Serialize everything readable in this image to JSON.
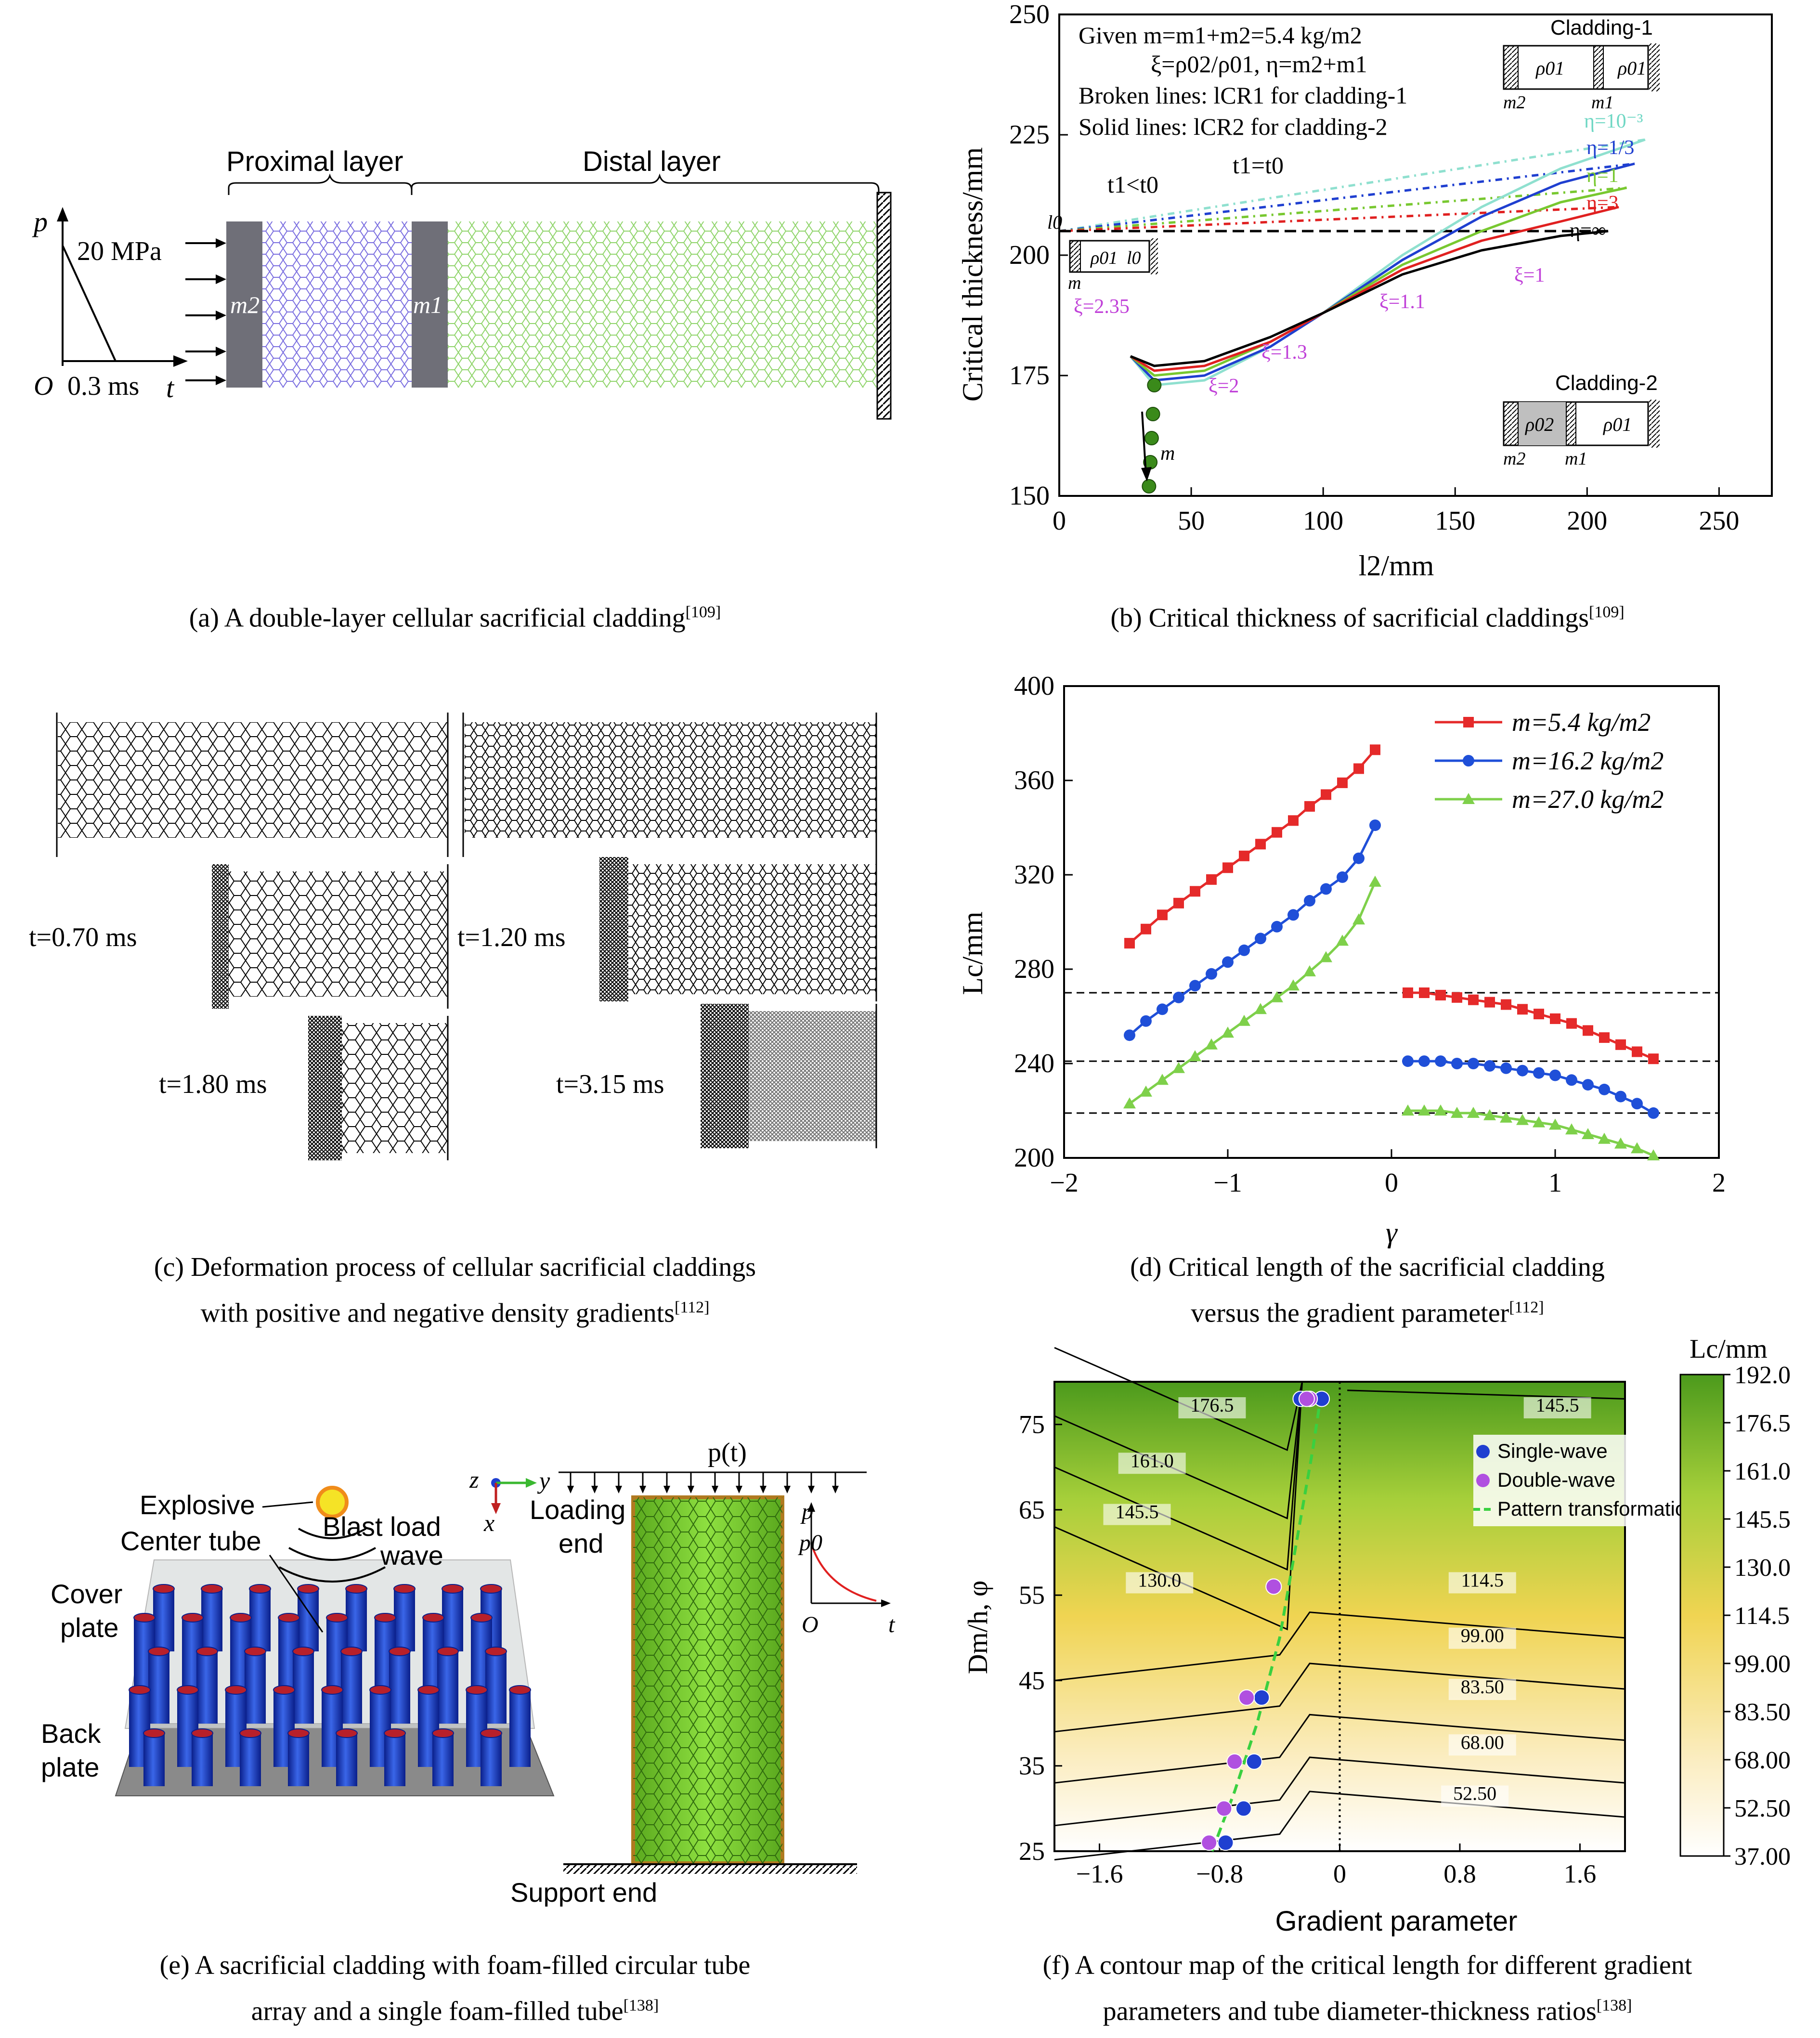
{
  "panel_a": {
    "pulse_axis_p": "p",
    "pulse_axis_t": "t",
    "pulse_origin": "O",
    "pulse_peak": "20 MPa",
    "pulse_duration": "0.3 ms",
    "proximal_label": "Proximal layer",
    "distal_label": "Distal layer",
    "mass_2": "m2",
    "mass_1": "m1",
    "caption": "(a) A double-layer cellular sacrificial cladding",
    "ref": "[109]",
    "colors": {
      "proximal": "#7a6ee0",
      "distal": "#8fd46a",
      "mass": "#6f6f78"
    }
  },
  "panel_b": {
    "chart_data": {
      "type": "line",
      "xlabel": "l2/mm",
      "ylabel": "Critical thickness/mm",
      "xlim": [
        0,
        270
      ],
      "ylim": [
        150,
        250
      ],
      "xticks": [
        0,
        50,
        100,
        150,
        200,
        250
      ],
      "yticks": [
        150,
        175,
        200,
        225,
        250
      ],
      "annotations": [
        "Given m=m1+m2=5.4 kg/m2",
        "ξ=ρ02/ρ01, η=m2+m1",
        "Broken lines: lCR1 for cladding-1",
        "Solid lines: lCR2 for cladding-2",
        "t1<t0",
        "t1=t0",
        "l0"
      ],
      "series_labels": [
        "η=10⁻³",
        "η=1/3",
        "η=1",
        "η=3",
        "η=∞"
      ],
      "xi_labels": [
        "ξ=2.35",
        "ξ=2",
        "ξ=1.3",
        "ξ=1.1",
        "ξ=1"
      ],
      "inset_labels": [
        "Cladding-1",
        "Cladding-2",
        "ρ01",
        "ρ02",
        "m2",
        "m1",
        "m",
        "l0"
      ],
      "dash_lines": [
        {
          "color": "#8fe0cf",
          "x": [
            0,
            222
          ],
          "y": [
            205,
            224
          ]
        },
        {
          "color": "#1f3fd0",
          "x": [
            0,
            218
          ],
          "y": [
            205,
            219
          ]
        },
        {
          "color": "#78c830",
          "x": [
            0,
            215
          ],
          "y": [
            205,
            214
          ]
        },
        {
          "color": "#e02020",
          "x": [
            0,
            212
          ],
          "y": [
            205,
            210
          ]
        },
        {
          "color": "#000000",
          "x": [
            0,
            208
          ],
          "y": [
            205,
            205
          ]
        }
      ],
      "solid_lines": [
        {
          "color": "#8fe0cf",
          "x": [
            27,
            36,
            55,
            80,
            100,
            130,
            160,
            190,
            222
          ],
          "y": [
            179,
            173,
            174,
            181,
            188,
            200,
            210,
            218,
            224
          ]
        },
        {
          "color": "#1f3fd0",
          "x": [
            27,
            36,
            55,
            80,
            100,
            130,
            160,
            190,
            218
          ],
          "y": [
            179,
            174,
            175,
            181,
            188,
            199,
            208,
            215,
            219
          ]
        },
        {
          "color": "#78c830",
          "x": [
            27,
            36,
            55,
            80,
            100,
            130,
            160,
            190,
            215
          ],
          "y": [
            179,
            175,
            176,
            182,
            188,
            198,
            205,
            211,
            214
          ]
        },
        {
          "color": "#e02020",
          "x": [
            27,
            36,
            55,
            80,
            100,
            130,
            160,
            190,
            212
          ],
          "y": [
            179,
            176,
            177,
            182,
            188,
            197,
            203,
            207,
            210
          ]
        },
        {
          "color": "#000000",
          "x": [
            27,
            36,
            55,
            80,
            100,
            130,
            160,
            190,
            208
          ],
          "y": [
            179,
            177,
            178,
            183,
            188,
            196,
            201,
            204,
            205
          ]
        }
      ],
      "minimum_points": {
        "x": [
          36,
          35.5,
          35,
          34.5,
          34
        ],
        "y": [
          173,
          167,
          162,
          157,
          152
        ]
      },
      "arrow_label": "m",
      "colors": {
        "xi_labels": "#c040d8",
        "points": "#3a8a1a"
      }
    },
    "caption": "(b) Critical thickness of sacrificial claddings",
    "ref": "[109]"
  },
  "panel_c": {
    "times": [
      "t=0.70 ms",
      "t=1.20 ms",
      "t=1.80 ms",
      "t=3.15 ms"
    ],
    "caption_line1": "(c) Deformation process of cellular sacrificial claddings",
    "caption_line2": "with positive and negative density gradients",
    "ref": "[112]"
  },
  "panel_d": {
    "chart_data": {
      "type": "line",
      "xlabel": "γ",
      "ylabel": "Lc/mm",
      "xlim": [
        -2,
        2
      ],
      "ylim": [
        200,
        400
      ],
      "xticks": [
        -2,
        -1,
        0,
        1,
        2
      ],
      "yticks": [
        200,
        240,
        280,
        320,
        360,
        400
      ],
      "reference_lines": [
        270,
        241,
        219
      ],
      "series": [
        {
          "name": "m=5.4 kg/m2",
          "color": "#e52a2a",
          "marker": "square",
          "left": {
            "x": [
              -1.6,
              -1.5,
              -1.4,
              -1.3,
              -1.2,
              -1.1,
              -1.0,
              -0.9,
              -0.8,
              -0.7,
              -0.6,
              -0.5,
              -0.4,
              -0.3,
              -0.2,
              -0.1
            ],
            "y": [
              291,
              297,
              303,
              308,
              313,
              318,
              323,
              328,
              333,
              338,
              343,
              349,
              354,
              359,
              365,
              373
            ]
          },
          "right": {
            "x": [
              0.1,
              0.2,
              0.3,
              0.4,
              0.5,
              0.6,
              0.7,
              0.8,
              0.9,
              1.0,
              1.1,
              1.2,
              1.3,
              1.4,
              1.5,
              1.6
            ],
            "y": [
              270,
              270,
              269,
              268,
              267,
              266,
              265,
              263,
              261,
              259,
              257,
              254,
              251,
              248,
              245,
              242
            ]
          }
        },
        {
          "name": "m=16.2 kg/m2",
          "color": "#1f4fd8",
          "marker": "circle",
          "left": {
            "x": [
              -1.6,
              -1.5,
              -1.4,
              -1.3,
              -1.2,
              -1.1,
              -1.0,
              -0.9,
              -0.8,
              -0.7,
              -0.6,
              -0.5,
              -0.4,
              -0.3,
              -0.2,
              -0.1
            ],
            "y": [
              252,
              258,
              263,
              268,
              273,
              278,
              283,
              288,
              293,
              298,
              303,
              309,
              314,
              319,
              327,
              341
            ]
          },
          "right": {
            "x": [
              0.1,
              0.2,
              0.3,
              0.4,
              0.5,
              0.6,
              0.7,
              0.8,
              0.9,
              1.0,
              1.1,
              1.2,
              1.3,
              1.4,
              1.5,
              1.6
            ],
            "y": [
              241,
              241,
              241,
              240,
              240,
              239,
              238,
              237,
              236,
              235,
              233,
              231,
              229,
              226,
              223,
              219
            ]
          }
        },
        {
          "name": "m=27.0 kg/m2",
          "color": "#7ed04a",
          "marker": "triangle",
          "left": {
            "x": [
              -1.6,
              -1.5,
              -1.4,
              -1.3,
              -1.2,
              -1.1,
              -1.0,
              -0.9,
              -0.8,
              -0.7,
              -0.6,
              -0.5,
              -0.4,
              -0.3,
              -0.2,
              -0.1
            ],
            "y": [
              223,
              228,
              233,
              238,
              243,
              248,
              253,
              258,
              263,
              268,
              273,
              279,
              285,
              292,
              301,
              317
            ]
          },
          "right": {
            "x": [
              0.1,
              0.2,
              0.3,
              0.4,
              0.5,
              0.6,
              0.7,
              0.8,
              0.9,
              1.0,
              1.1,
              1.2,
              1.3,
              1.4,
              1.5,
              1.6
            ],
            "y": [
              220,
              220,
              220,
              219,
              219,
              218,
              217,
              216,
              215,
              214,
              212,
              210,
              208,
              206,
              204,
              201
            ]
          }
        }
      ],
      "legend_position": "top-right"
    },
    "caption_line1": "(d) Critical length of the sacrificial cladding",
    "caption_line2": "versus the gradient parameter",
    "ref": "[112]"
  },
  "panel_e": {
    "labels": {
      "explosive": "Explosive",
      "center_tube": "Center tube",
      "blast_line1": "Blast load",
      "blast_line2": "wave",
      "cover_line1": "Cover",
      "cover_line2": "plate",
      "back_line1": "Back",
      "back_line2": "plate",
      "p_t": "p(t)",
      "loading_line1": "Loading",
      "loading_line2": "end",
      "support_end": "Support end",
      "axis_z": "z",
      "axis_y": "y",
      "axis_x": "x",
      "pulse_p": "p",
      "pulse_p0": "p0",
      "pulse_o": "O",
      "pulse_t": "t"
    },
    "caption_line1": "(e) A sacrificial cladding with foam-filled circular tube",
    "caption_line2": "array and a single foam-filled tube",
    "ref": "[138]"
  },
  "panel_f": {
    "chart_data": {
      "type": "heatmap",
      "xlabel": "Gradient parameter",
      "ylabel": "Dm/h, φ",
      "colorbar_title": "Lc/mm",
      "xlim": [
        -1.9,
        1.9
      ],
      "ylim": [
        25,
        80
      ],
      "xticks": [
        "-1.6",
        "-0.8",
        "0",
        "0.8",
        "1.6"
      ],
      "yticks": [
        "25",
        "35",
        "45",
        "55",
        "65",
        "75"
      ],
      "colorbar_ticks": [
        "192.0",
        "176.5",
        "161.0",
        "145.5",
        "130.0",
        "114.5",
        "99.00",
        "83.50",
        "68.00",
        "52.50",
        "37.00"
      ],
      "contour_labels": [
        "176.5",
        "161.0",
        "145.5",
        "130.0",
        "145.5",
        "114.5",
        "99.00",
        "83.50",
        "68.00",
        "52.50"
      ],
      "legend": [
        "Single-wave",
        "Double-wave",
        "Pattern transformation"
      ],
      "single_wave": {
        "x": [
          -0.76,
          -0.64,
          -0.57,
          -0.52,
          -0.44,
          -0.26,
          -0.12
        ],
        "y": [
          26,
          30,
          35.5,
          43,
          56,
          78,
          78
        ]
      },
      "double_wave": {
        "x": [
          -0.87,
          -0.77,
          -0.7,
          -0.62,
          -0.44,
          -0.2,
          -0.22
        ],
        "y": [
          26,
          30,
          35.5,
          43,
          56,
          78,
          78
        ]
      },
      "transition": {
        "x": [
          -0.85,
          -0.7,
          -0.55,
          -0.4,
          -0.28,
          -0.18,
          -0.12
        ],
        "y": [
          25,
          32,
          40,
          50,
          62,
          72,
          79
        ]
      },
      "colors": {
        "single": "#1f3fd0",
        "double": "#b050e0",
        "transition": "#3ad040"
      }
    },
    "caption_line1": "(f) A contour map of the critical length for different gradient",
    "caption_line2": "parameters and tube diameter-thickness ratios",
    "ref": "[138]"
  }
}
